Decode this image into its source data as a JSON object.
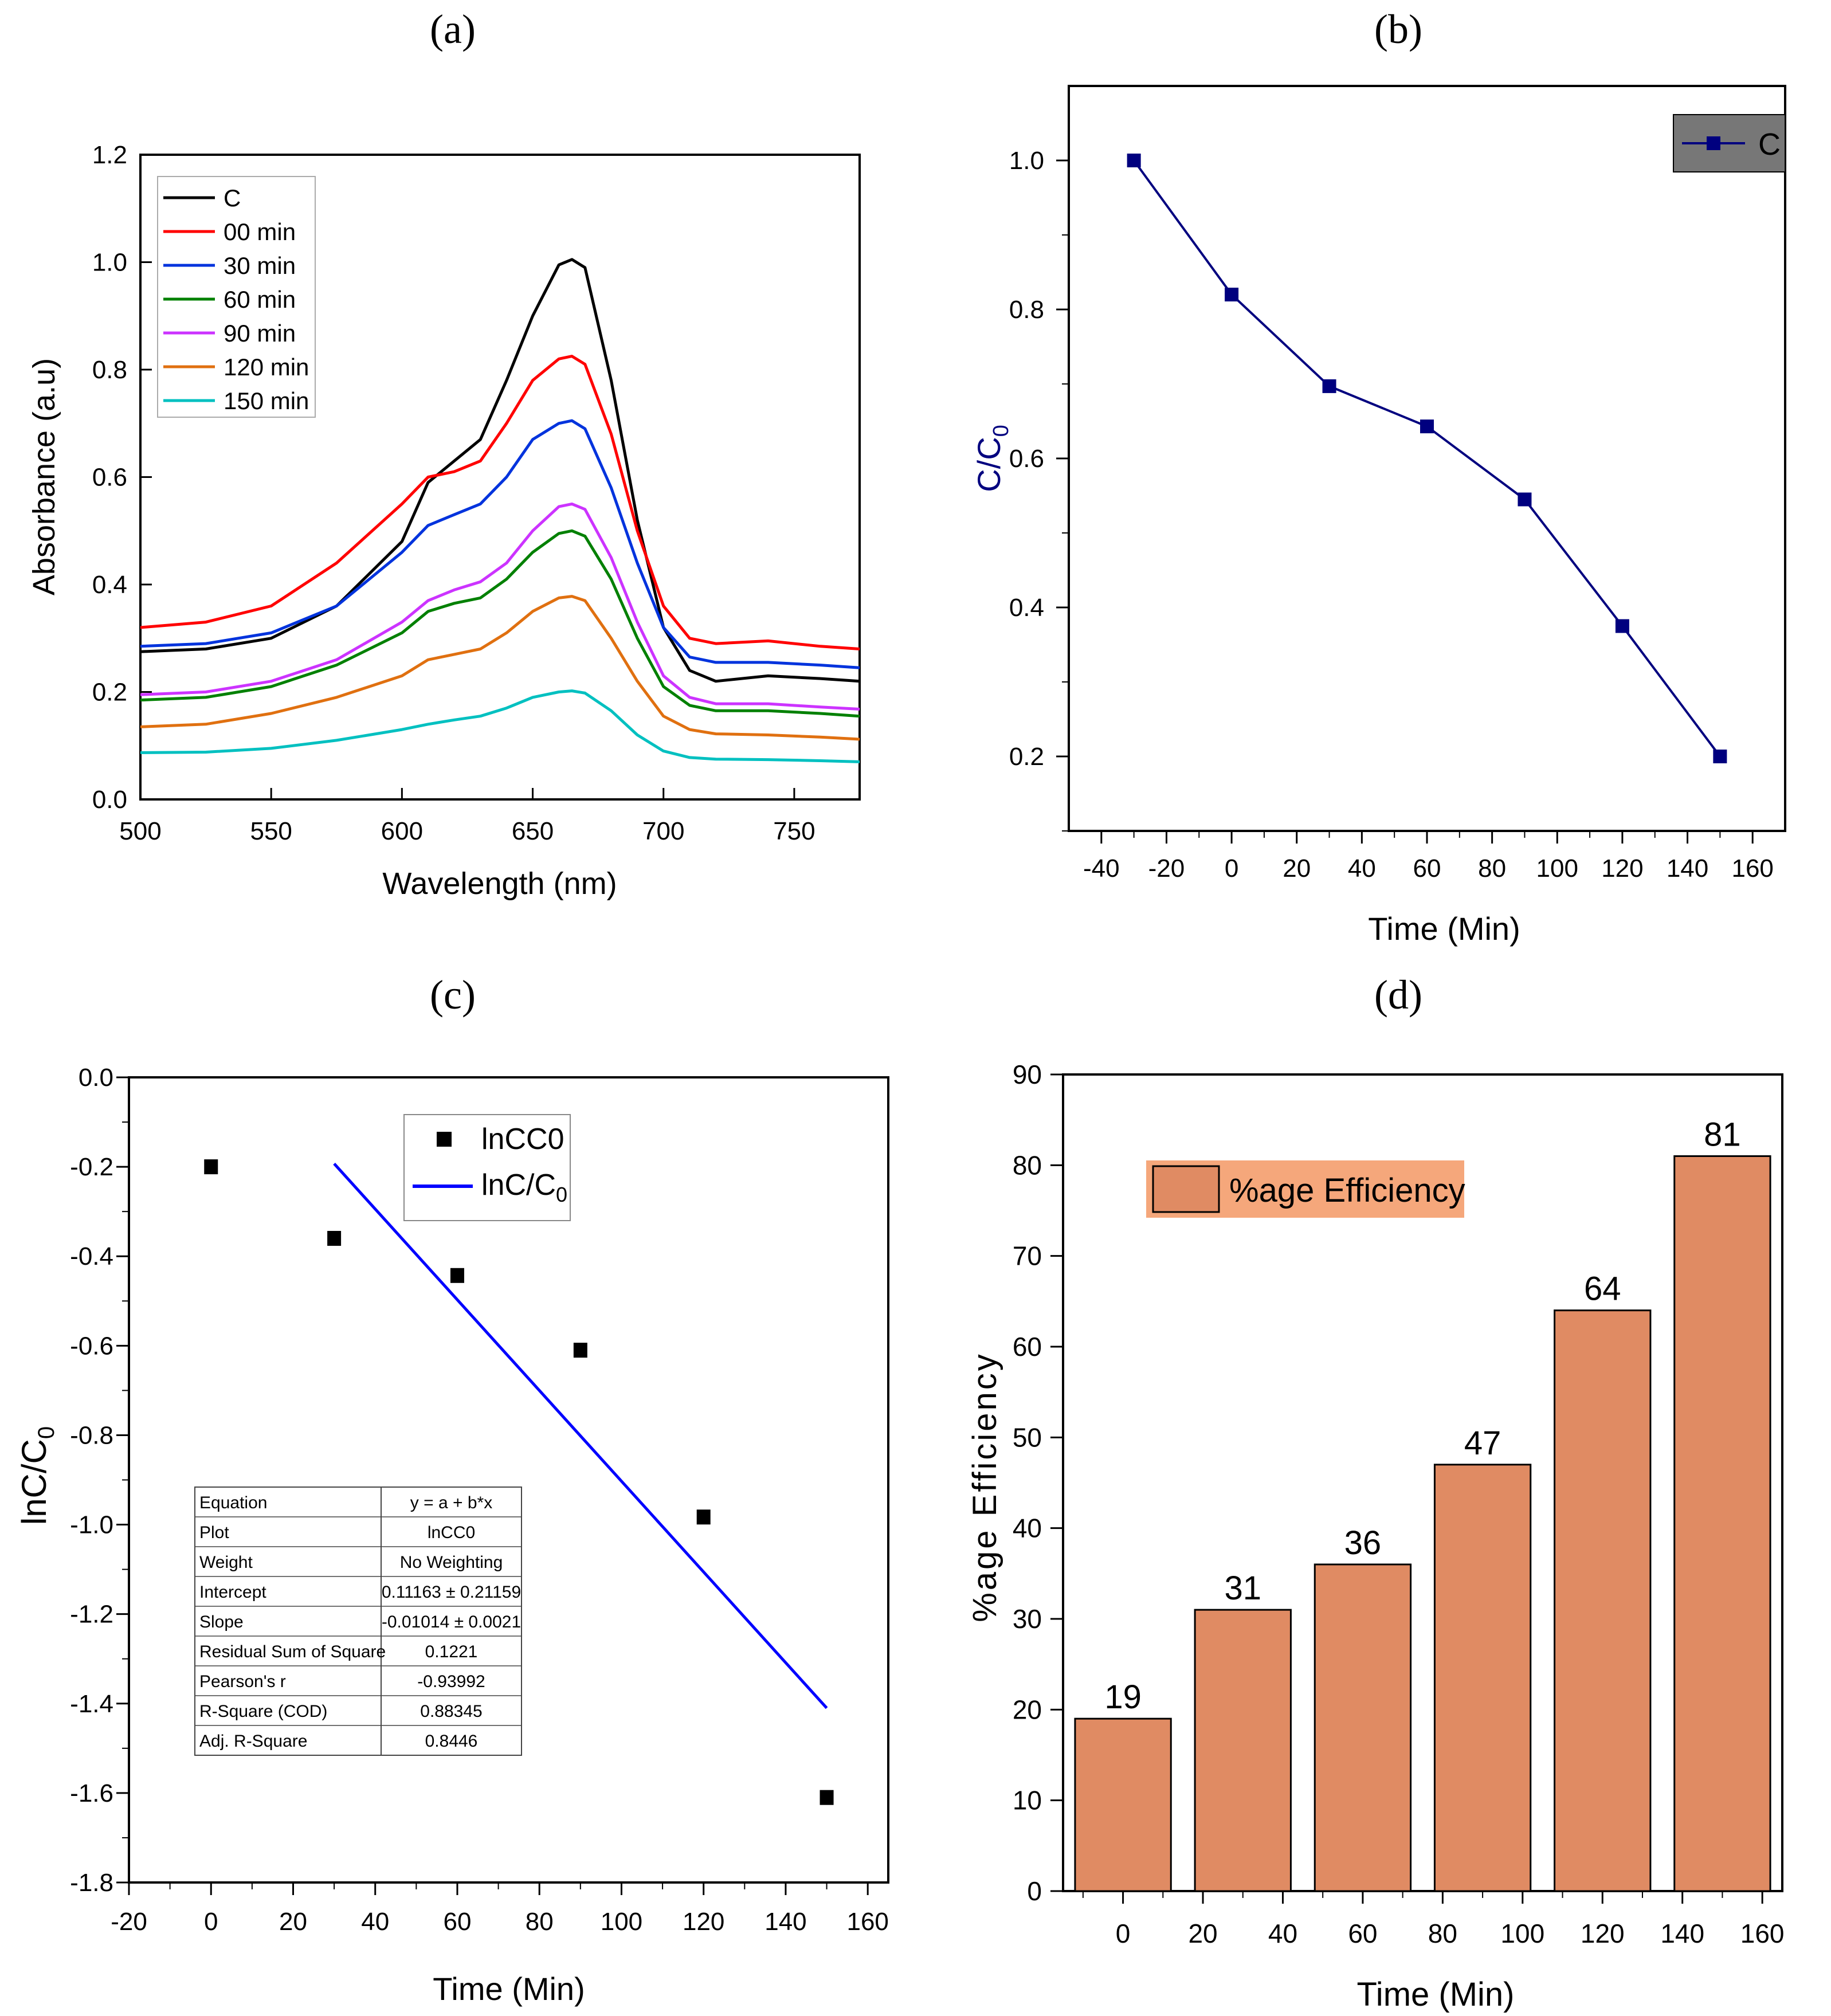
{
  "chart_data": [
    {
      "id": "a",
      "panel_label": "(a)",
      "type": "line",
      "xlabel": "Wavelength (nm)",
      "ylabel": "Absorbance (a.u)",
      "xlim": [
        500,
        775
      ],
      "ylim": [
        0,
        1.2
      ],
      "xticks": [
        "500",
        "550",
        "600",
        "650",
        "700",
        "750"
      ],
      "yticks": [
        "0.0",
        "0.2",
        "0.4",
        "0.6",
        "0.8",
        "1.0",
        "1.2"
      ],
      "legend_position": "top-left",
      "x": [
        500,
        525,
        550,
        575,
        600,
        610,
        620,
        630,
        640,
        650,
        660,
        665,
        670,
        680,
        690,
        700,
        710,
        720,
        740,
        760,
        775
      ],
      "series": [
        {
          "name": "C",
          "color": "#000000",
          "values": [
            0.275,
            0.28,
            0.3,
            0.36,
            0.48,
            0.59,
            0.63,
            0.67,
            0.78,
            0.9,
            0.995,
            1.005,
            0.99,
            0.78,
            0.52,
            0.32,
            0.24,
            0.22,
            0.23,
            0.225,
            0.22
          ]
        },
        {
          "name": "00 min",
          "color": "#ff0000",
          "values": [
            0.32,
            0.33,
            0.36,
            0.44,
            0.55,
            0.6,
            0.61,
            0.63,
            0.7,
            0.78,
            0.82,
            0.825,
            0.81,
            0.68,
            0.5,
            0.36,
            0.3,
            0.29,
            0.295,
            0.285,
            0.28
          ]
        },
        {
          "name": "30 min",
          "color": "#0033dd",
          "values": [
            0.285,
            0.29,
            0.31,
            0.36,
            0.46,
            0.51,
            0.53,
            0.55,
            0.6,
            0.67,
            0.7,
            0.705,
            0.69,
            0.58,
            0.44,
            0.32,
            0.265,
            0.255,
            0.255,
            0.25,
            0.245
          ]
        },
        {
          "name": "60 min",
          "color": "#008000",
          "values": [
            0.185,
            0.19,
            0.21,
            0.25,
            0.31,
            0.35,
            0.365,
            0.375,
            0.41,
            0.46,
            0.495,
            0.5,
            0.49,
            0.41,
            0.3,
            0.21,
            0.175,
            0.165,
            0.165,
            0.16,
            0.155
          ]
        },
        {
          "name": "90 min",
          "color": "#cc33ff",
          "values": [
            0.195,
            0.2,
            0.22,
            0.26,
            0.33,
            0.37,
            0.39,
            0.405,
            0.44,
            0.5,
            0.545,
            0.55,
            0.54,
            0.45,
            0.33,
            0.23,
            0.19,
            0.178,
            0.178,
            0.172,
            0.168
          ]
        },
        {
          "name": "120 min",
          "color": "#e07010",
          "values": [
            0.135,
            0.14,
            0.16,
            0.19,
            0.23,
            0.26,
            0.27,
            0.28,
            0.31,
            0.35,
            0.375,
            0.378,
            0.37,
            0.3,
            0.22,
            0.155,
            0.13,
            0.122,
            0.12,
            0.116,
            0.112
          ]
        },
        {
          "name": "150 min",
          "color": "#00c0c0",
          "values": [
            0.087,
            0.088,
            0.095,
            0.11,
            0.13,
            0.14,
            0.148,
            0.155,
            0.17,
            0.19,
            0.2,
            0.202,
            0.198,
            0.165,
            0.12,
            0.09,
            0.078,
            0.075,
            0.074,
            0.072,
            0.07
          ]
        }
      ]
    },
    {
      "id": "b",
      "panel_label": "(b)",
      "type": "line",
      "xlabel": "Time (Min)",
      "ylabel": "C/C",
      "ylabel_sub": "0",
      "xlim": [
        -50,
        170
      ],
      "ylim": [
        0.1,
        1.1
      ],
      "xticks": [
        "-40",
        "-20",
        "0",
        "20",
        "40",
        "60",
        "80",
        "100",
        "120",
        "140",
        "160"
      ],
      "yticks": [
        "0.2",
        "0.4",
        "0.6",
        "0.8",
        "1.0"
      ],
      "legend_position": "top-right",
      "series": [
        {
          "name": "C",
          "color": "#00007f",
          "x": [
            -30,
            0,
            30,
            60,
            90,
            120,
            150
          ],
          "values": [
            1.0,
            0.82,
            0.697,
            0.643,
            0.545,
            0.375,
            0.2
          ]
        }
      ]
    },
    {
      "id": "c",
      "panel_label": "(c)",
      "type": "scatter",
      "xlabel": "Time (Min)",
      "ylabel": "lnC/C",
      "ylabel_sub": "0",
      "xlim": [
        -20,
        165
      ],
      "ylim": [
        -1.8,
        0.0
      ],
      "xticks": [
        "-20",
        "0",
        "20",
        "40",
        "60",
        "80",
        "100",
        "120",
        "140",
        "160"
      ],
      "yticks": [
        "0.0",
        "-0.2",
        "-0.4",
        "-0.6",
        "-0.8",
        "-1.0",
        "-1.2",
        "-1.4",
        "-1.6",
        "-1.8"
      ],
      "legend_position": "top-center",
      "points": {
        "name": "lnCC0",
        "x": [
          0,
          30,
          60,
          90,
          120,
          150
        ],
        "y": [
          -0.2,
          -0.36,
          -0.443,
          -0.61,
          -0.983,
          -1.61
        ]
      },
      "fit": {
        "name": "lnC/C",
        "name_sub": "0",
        "color": "#0000ff",
        "x": [
          30,
          150
        ],
        "y": [
          -0.193,
          -1.41
        ]
      },
      "stats_table": [
        [
          "Equation",
          "y = a + b*x"
        ],
        [
          "Plot",
          "lnCC0"
        ],
        [
          "Weight",
          "No Weighting"
        ],
        [
          "Intercept",
          "0.11163 ± 0.21159"
        ],
        [
          "Slope",
          "-0.01014 ± 0.0021"
        ],
        [
          "Residual Sum of Square",
          "0.1221"
        ],
        [
          "Pearson's r",
          "-0.93992"
        ],
        [
          "R-Square (COD)",
          "0.88345"
        ],
        [
          "Adj. R-Square",
          "0.8446"
        ]
      ]
    },
    {
      "id": "d",
      "panel_label": "(d)",
      "type": "bar",
      "xlabel": "Time (Min)",
      "ylabel": "%age  Efficiency",
      "xlim": [
        -15,
        165
      ],
      "ylim": [
        0,
        90
      ],
      "xticks": [
        "0",
        "20",
        "40",
        "60",
        "80",
        "100",
        "120",
        "140",
        "160"
      ],
      "yticks": [
        "0",
        "10",
        "20",
        "30",
        "40",
        "50",
        "60",
        "70",
        "80",
        "90"
      ],
      "legend": "%age  Efficiency",
      "legend_position": "top-left",
      "bar_color": "#e08b63",
      "legend_bg": "#f5a77b",
      "bars": [
        {
          "x": 0,
          "value": 19,
          "label": "19"
        },
        {
          "x": 30,
          "value": 31,
          "label": "31"
        },
        {
          "x": 60,
          "value": 36,
          "label": "36"
        },
        {
          "x": 90,
          "value": 47,
          "label": "47"
        },
        {
          "x": 120,
          "value": 64,
          "label": "64"
        },
        {
          "x": 150,
          "value": 81,
          "label": "81"
        }
      ]
    }
  ]
}
